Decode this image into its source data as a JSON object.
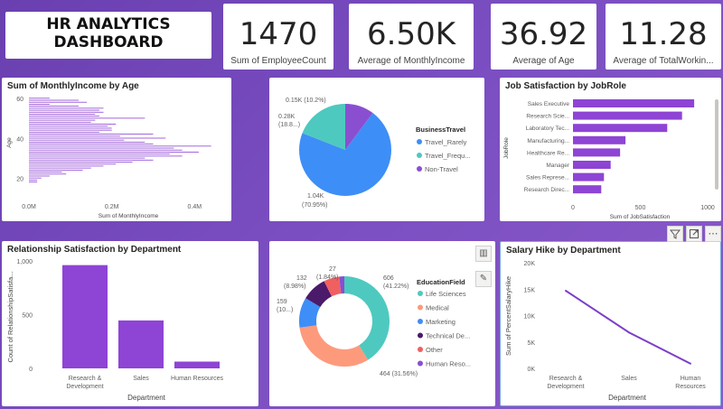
{
  "title": {
    "line1": "HR ANALYTICS",
    "line2": "DASHBOARD"
  },
  "kpis": [
    {
      "value": "1470",
      "label": "Sum of EmployeeCount"
    },
    {
      "value": "6.50K",
      "label": "Average of MonthlyIncome"
    },
    {
      "value": "36.92",
      "label": "Average of Age"
    },
    {
      "value": "11.28",
      "label": "Average of TotalWorkin..."
    }
  ],
  "toolbar": {
    "filter_icon": "filter-icon",
    "focus_icon": "focus-mode-icon",
    "more_label": "⋯"
  },
  "colors": {
    "bar": "#8e44d4",
    "line": "#7b3fc8",
    "blue": "#3e8ef7",
    "teal": "#4ec9c0",
    "purple": "#8a4fd0",
    "salmon": "#fd9a7c",
    "darkpurple": "#4b1a6b",
    "red": "#f06060"
  },
  "chart_data": [
    {
      "type": "bar",
      "orientation": "horizontal",
      "title": "Sum of MonthlyIncome by Age",
      "xlabel": "Sum of MonthlyIncome",
      "ylabel": "Age",
      "xticks": [
        "0.0M",
        "0.2M",
        "0.4M"
      ],
      "yticks": [
        "60",
        "40",
        "20"
      ],
      "xlim": [
        0,
        0.48
      ],
      "ylim": [
        18,
        60
      ],
      "categories": [
        60,
        59,
        58,
        57,
        56,
        55,
        54,
        53,
        52,
        51,
        50,
        49,
        48,
        47,
        46,
        45,
        44,
        43,
        42,
        41,
        40,
        39,
        38,
        37,
        36,
        35,
        34,
        33,
        32,
        31,
        30,
        29,
        28,
        27,
        26,
        25,
        24,
        23,
        22,
        21,
        20,
        19,
        18
      ],
      "values": [
        0.05,
        0.12,
        0.14,
        0.05,
        0.12,
        0.18,
        0.17,
        0.18,
        0.16,
        0.17,
        0.28,
        0.16,
        0.15,
        0.21,
        0.19,
        0.2,
        0.2,
        0.17,
        0.3,
        0.22,
        0.33,
        0.23,
        0.28,
        0.3,
        0.44,
        0.35,
        0.37,
        0.41,
        0.34,
        0.37,
        0.28,
        0.3,
        0.25,
        0.21,
        0.18,
        0.15,
        0.13,
        0.08,
        0.09,
        0.05,
        0.03,
        0.02,
        0.02
      ]
    },
    {
      "type": "pie",
      "title": "BusinessTravel",
      "legend_title": "BusinessTravel",
      "categories": [
        "Travel_Rarely",
        "Travel_Frequ...",
        "Non-Travel"
      ],
      "values": [
        1040,
        280,
        150
      ],
      "data_labels": [
        "1.04K",
        "0.28K",
        "0.15K (10.2%)"
      ],
      "data_labels_pct": [
        "(70.95%)",
        "(18.8...)",
        ""
      ]
    },
    {
      "type": "bar",
      "orientation": "horizontal",
      "title": "Job Satisfaction by JobRole",
      "xlabel": "Sum of JobSatisfaction",
      "ylabel": "JobRole",
      "xticks": [
        "0",
        "500",
        "1000"
      ],
      "xlim": [
        0,
        1000
      ],
      "categories": [
        "Sales Executive",
        "Research Scie...",
        "Laboratory Tec...",
        "Manufacturing...",
        "Healthcare Re...",
        "Manager",
        "Sales Represe...",
        "Research Direc..."
      ],
      "values": [
        900,
        810,
        700,
        390,
        350,
        280,
        230,
        210
      ]
    },
    {
      "type": "bar",
      "title": "Relationship Satisfaction by Department",
      "xlabel": "Department",
      "ylabel": "Count of RelationshipSatisfa...",
      "yticks": [
        "1,000",
        "500",
        "0"
      ],
      "ylim": [
        0,
        1000
      ],
      "categories": [
        "Research & Development",
        "Sales",
        "Human Resources"
      ],
      "category_lines": [
        [
          "Research &",
          "Development"
        ],
        [
          "Sales"
        ],
        [
          "Human Resources"
        ]
      ],
      "values": [
        961,
        446,
        63
      ]
    },
    {
      "type": "pie",
      "subtype": "donut",
      "title": "EducationField",
      "legend_title": "EducationField",
      "categories": [
        "Life Sciences",
        "Medical",
        "Marketing",
        "Technical De...",
        "Other",
        "Human Reso..."
      ],
      "values": [
        606,
        464,
        159,
        132,
        82,
        27
      ],
      "data_labels": [
        "606",
        "464 (31.56%)",
        "159",
        "132",
        "",
        "27"
      ],
      "data_labels_pct": [
        "(41.22%)",
        "",
        "(10...)",
        "(8.98%)",
        "",
        "(1.84%)"
      ]
    },
    {
      "type": "line",
      "title": "Salary Hike by Department",
      "xlabel": "Department",
      "ylabel": "Sum of PercentSalaryHike",
      "yticks": [
        "20K",
        "15K",
        "10K",
        "5K",
        "0K"
      ],
      "ylim": [
        0,
        20000
      ],
      "categories": [
        "Research & Development",
        "Sales",
        "Human Resources"
      ],
      "category_lines": [
        [
          "Research &",
          "Development"
        ],
        [
          "Sales"
        ],
        [
          "Human",
          "Resources"
        ]
      ],
      "values": [
        14700,
        6800,
        900
      ]
    }
  ]
}
